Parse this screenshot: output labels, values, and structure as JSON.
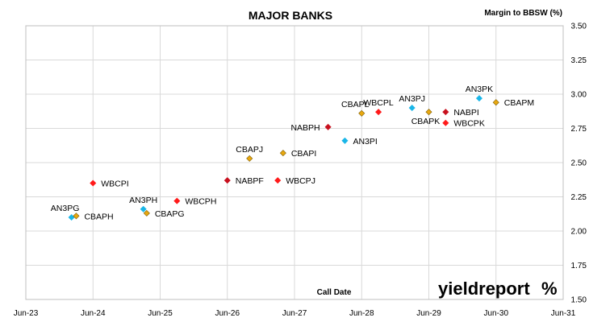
{
  "chart_data": {
    "type": "scatter",
    "title": "MAJOR BANKS",
    "ylabel": "Margin to BBSW (%)",
    "xlabel": "Call Date",
    "ylim": [
      1.5,
      3.5
    ],
    "yticks": [
      "1.50",
      "1.75",
      "2.00",
      "2.25",
      "2.50",
      "2.75",
      "3.00",
      "3.25",
      "3.50"
    ],
    "xlim": [
      2023.42,
      2031.42
    ],
    "xticks": [
      {
        "label": "Jun-23",
        "x": 2023.42
      },
      {
        "label": "Jun-24",
        "x": 2024.42
      },
      {
        "label": "Jun-25",
        "x": 2025.42
      },
      {
        "label": "Jun-26",
        "x": 2026.42
      },
      {
        "label": "Jun-27",
        "x": 2027.42
      },
      {
        "label": "Jun-28",
        "x": 2028.42
      },
      {
        "label": "Jun-29",
        "x": 2029.42
      },
      {
        "label": "Jun-30",
        "x": 2030.42
      },
      {
        "label": "Jun-31",
        "x": 2031.42
      }
    ],
    "grid": {
      "x": true,
      "y": true
    },
    "bank_colors": {
      "ANZ": "#1ab6e8",
      "CBA": "#e8a810",
      "NAB": "#c8101e",
      "WBC": "#ff1a1a"
    },
    "points": [
      {
        "label": "AN3PG",
        "bank": "ANZ",
        "x": 2024.1,
        "y": 2.1,
        "pos": "above-left"
      },
      {
        "label": "CBAPH",
        "bank": "CBA",
        "x": 2024.17,
        "y": 2.11,
        "pos": "right"
      },
      {
        "label": "WBCPI",
        "bank": "WBC",
        "x": 2024.42,
        "y": 2.35,
        "pos": "right"
      },
      {
        "label": "AN3PH",
        "bank": "ANZ",
        "x": 2025.17,
        "y": 2.16,
        "pos": "above"
      },
      {
        "label": "CBAPG",
        "bank": "CBA",
        "x": 2025.22,
        "y": 2.13,
        "pos": "right"
      },
      {
        "label": "WBCPH",
        "bank": "WBC",
        "x": 2025.67,
        "y": 2.22,
        "pos": "right"
      },
      {
        "label": "NABPF",
        "bank": "NAB",
        "x": 2026.42,
        "y": 2.37,
        "pos": "right"
      },
      {
        "label": "CBAPJ",
        "bank": "CBA",
        "x": 2026.75,
        "y": 2.53,
        "pos": "above"
      },
      {
        "label": "WBCPJ",
        "bank": "WBC",
        "x": 2027.17,
        "y": 2.37,
        "pos": "right"
      },
      {
        "label": "CBAPI",
        "bank": "CBA",
        "x": 2027.25,
        "y": 2.57,
        "pos": "right"
      },
      {
        "label": "NABPH",
        "bank": "NAB",
        "x": 2027.92,
        "y": 2.76,
        "pos": "left"
      },
      {
        "label": "AN3PI",
        "bank": "ANZ",
        "x": 2028.17,
        "y": 2.66,
        "pos": "right"
      },
      {
        "label": "CBAPL",
        "bank": "CBA",
        "x": 2028.42,
        "y": 2.86,
        "pos": "above-left"
      },
      {
        "label": "WBCPL",
        "bank": "WBC",
        "x": 2028.67,
        "y": 2.87,
        "pos": "above"
      },
      {
        "label": "AN3PJ",
        "bank": "ANZ",
        "x": 2029.17,
        "y": 2.9,
        "pos": "above"
      },
      {
        "label": "CBAPK",
        "bank": "CBA",
        "x": 2029.42,
        "y": 2.87,
        "pos": "below"
      },
      {
        "label": "NABPI",
        "bank": "NAB",
        "x": 2029.67,
        "y": 2.87,
        "pos": "right"
      },
      {
        "label": "WBCPK",
        "bank": "WBC",
        "x": 2029.67,
        "y": 2.79,
        "pos": "right"
      },
      {
        "label": "AN3PK",
        "bank": "ANZ",
        "x": 2030.17,
        "y": 2.97,
        "pos": "above"
      },
      {
        "label": "CBAPM",
        "bank": "CBA",
        "x": 2030.42,
        "y": 2.94,
        "pos": "right"
      }
    ]
  },
  "watermark": {
    "text": "yieldreport",
    "symbol": "%"
  }
}
